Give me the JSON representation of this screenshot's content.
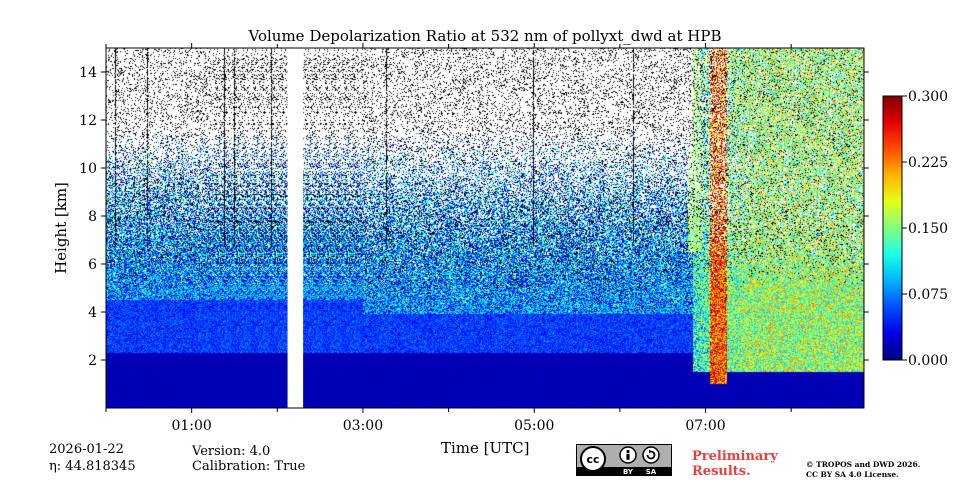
{
  "chart_data": {
    "type": "heatmap",
    "title": "Volume Depolarization Ratio at 532 nm of pollyxt_dwd at HPB",
    "xlabel": "Time [UTC]",
    "ylabel": "Height [km]",
    "xlim_hours": [
      0.0,
      8.85
    ],
    "ylim_km": [
      0.0,
      15.0
    ],
    "x_ticks": [
      {
        "value": 1.0,
        "label": "01:00"
      },
      {
        "value": 3.0,
        "label": "03:00"
      },
      {
        "value": 5.0,
        "label": "05:00"
      },
      {
        "value": 7.0,
        "label": "07:00"
      }
    ],
    "x_minor_ticks": [
      0,
      2,
      4,
      6,
      8
    ],
    "y_ticks": [
      {
        "value": 2,
        "label": "2"
      },
      {
        "value": 4,
        "label": "4"
      },
      {
        "value": 6,
        "label": "6"
      },
      {
        "value": 8,
        "label": "8"
      },
      {
        "value": 10,
        "label": "10"
      },
      {
        "value": 12,
        "label": "12"
      },
      {
        "value": 14,
        "label": "14"
      }
    ],
    "colorbar": {
      "min": 0.0,
      "max": 0.3,
      "ticks": [
        "0.000",
        "0.075",
        "0.150",
        "0.225",
        "0.300"
      ],
      "tick_values": [
        0.0,
        0.075,
        0.15,
        0.225,
        0.3
      ],
      "colormap": "jet"
    },
    "data_gap_hours": [
      2.12,
      2.3
    ],
    "profile_lines_hours": [
      0.1,
      0.48,
      1.38,
      1.5,
      1.93,
      3.27,
      4.98,
      6.15
    ],
    "aerosol_layer_top_km": 4.5,
    "noise_top_km": 9.0,
    "high_depol_start_hours": 6.85,
    "high_depol_core_hours": [
      7.05,
      7.25
    ]
  },
  "info": {
    "date": "2026-01-22",
    "eta_label": "η: 44.818345",
    "version": "Version: 4.0",
    "calibration": "Calibration: True",
    "preliminary_line1": "Preliminary",
    "preliminary_line2": "Results.",
    "copyright_line1": "© TROPOS and DWD 2026.",
    "copyright_line2": "CC BY SA 4.0 License."
  },
  "license_badge": {
    "cc_text": "cc",
    "by_text": "BY",
    "sa_text": "SA"
  }
}
